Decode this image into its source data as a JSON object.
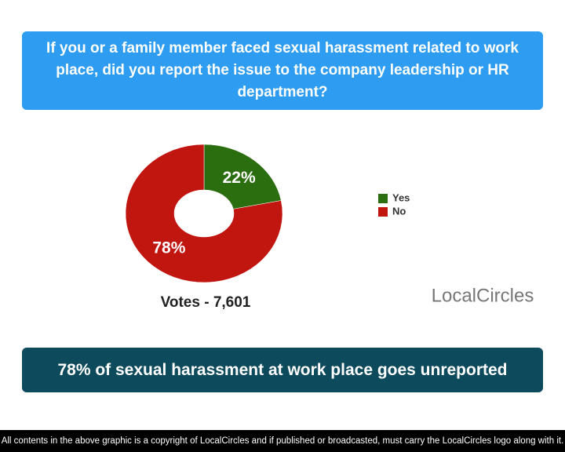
{
  "chart_data": {
    "type": "pie",
    "title": "If you or a family member faced sexual harassment related to work place, did you report the issue to the company leadership or HR department?",
    "categories": [
      "Yes",
      "No"
    ],
    "values": [
      22,
      78
    ],
    "value_labels": [
      "22%",
      "78%"
    ],
    "colors": [
      "#2b6e10",
      "#c11510"
    ],
    "note": "Votes - 7,601",
    "headline": "78% of sexual harassment at work place goes unreported",
    "logo": "LocalCircles",
    "footer": "All contents in the above graphic is a copyright of LocalCircles and if published or broadcasted, must carry the LocalCircles logo along with it."
  }
}
